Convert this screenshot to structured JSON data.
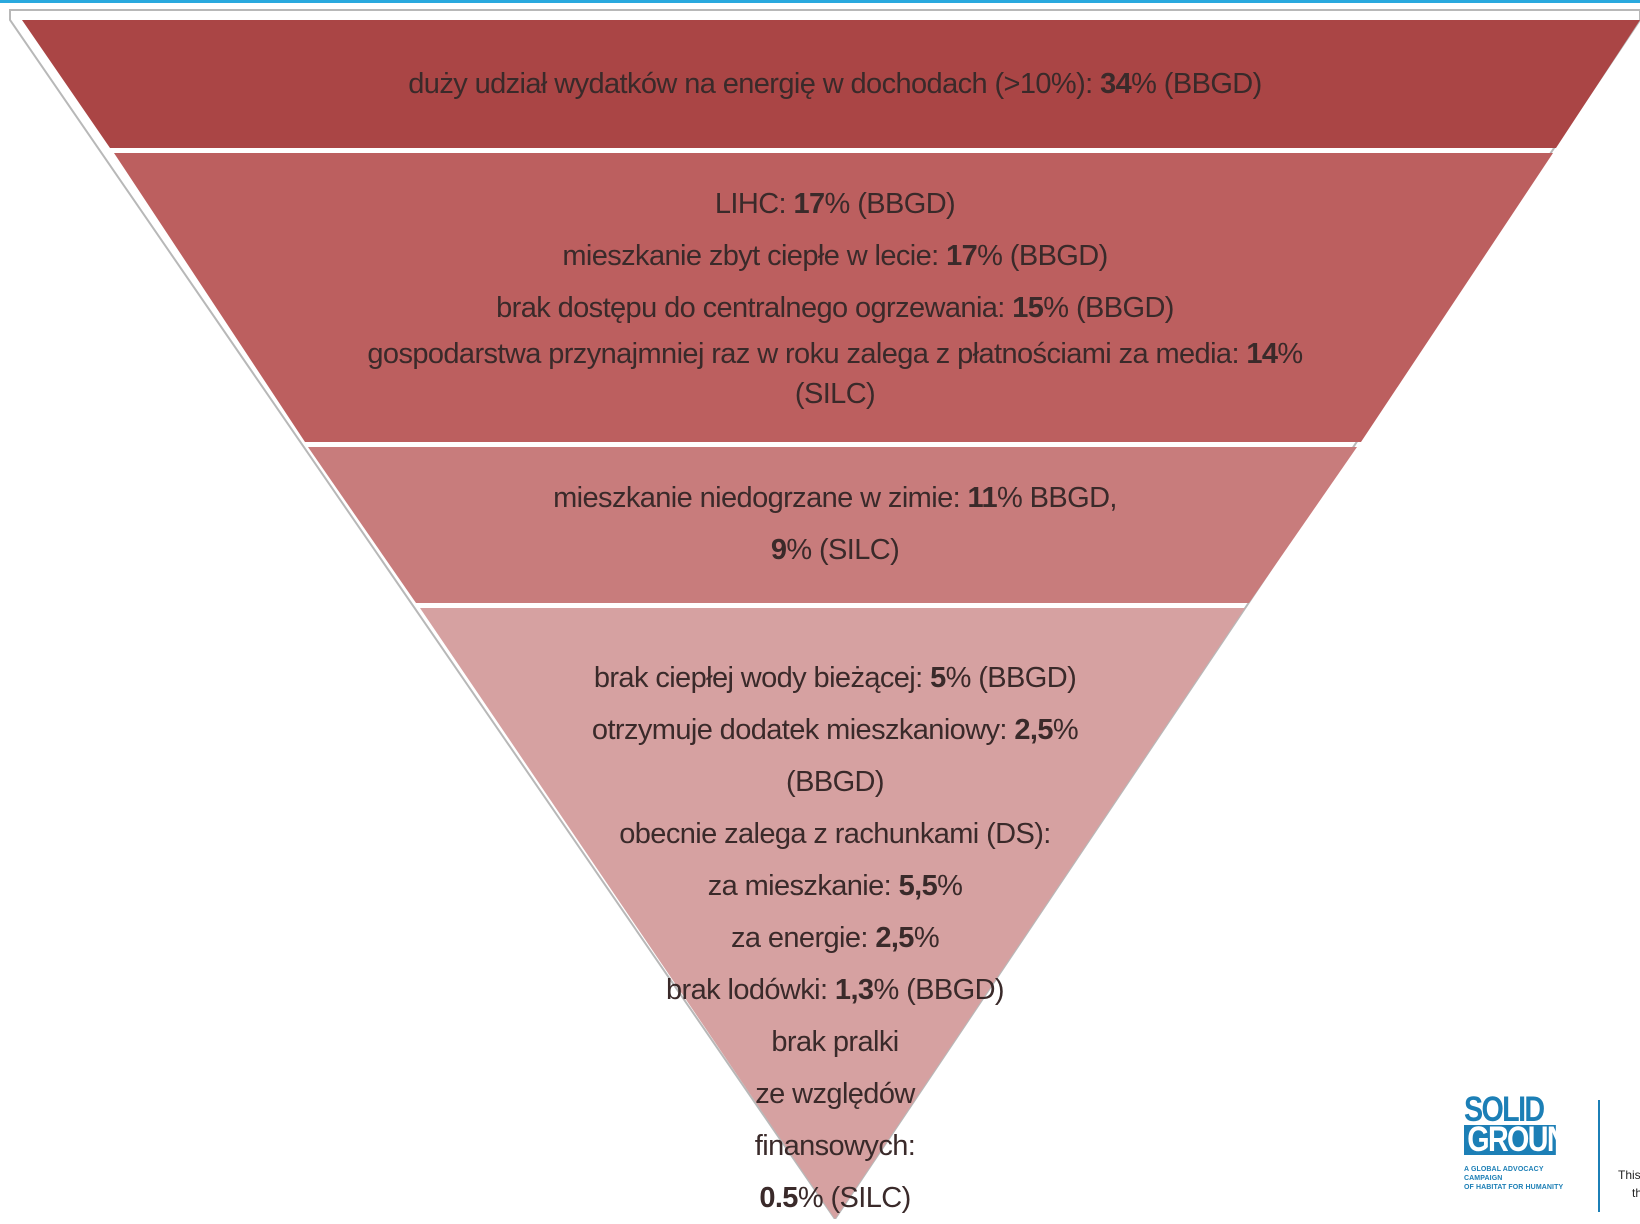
{
  "colors": {
    "top_line": "#2aa9de",
    "tier1": "#aa4545",
    "tier2": "#bc5f5f",
    "tier3": "#c87c7c",
    "tier4": "#d6a1a1",
    "outline": "#b8b8b8",
    "logo_blue": "#1c7fb6"
  },
  "tiers": [
    {
      "lines": [
        {
          "pre": "duży udział wydatków na energię w dochodach (>10%): ",
          "val": "34",
          "post": "% (BBGD)"
        }
      ]
    },
    {
      "lines": [
        {
          "pre": "LIHC: ",
          "val": "17",
          "post": "% (BBGD)"
        },
        {
          "pre": "mieszkanie  zbyt ciepłe w lecie: ",
          "val": "17",
          "post": "% (BBGD)"
        },
        {
          "pre": "brak dostępu do centralnego ogrzewania: ",
          "val": "15",
          "post": "% (BBGD)"
        },
        {
          "pre": "gospodarstwa przynajmniej raz w roku zalega z płatnościami za media: ",
          "val": "14",
          "post": "%"
        },
        {
          "pre": "(SILC)",
          "val": "",
          "post": ""
        }
      ]
    },
    {
      "lines": [
        {
          "pre": "mieszkanie niedogrzane w zimie: ",
          "val": "11",
          "post": "% BBGD,"
        },
        {
          "pre": "",
          "val": "9",
          "post": "% (SILC)"
        }
      ]
    },
    {
      "lines": [
        {
          "pre": "brak ciepłej wody bieżącej: ",
          "val": "5",
          "post": "% (BBGD)"
        },
        {
          "pre": "otrzymuje dodatek mieszkaniowy: ",
          "val": "2,5",
          "post": "% (BBGD)"
        },
        {
          "pre": "obecnie zalega z rachunkami (DS):",
          "val": "",
          "post": ""
        },
        {
          "pre": "za mieszkanie: ",
          "val": "5,5",
          "post": "%"
        },
        {
          "pre": "za energie: ",
          "val": "2,5",
          "post": "%"
        },
        {
          "pre": "brak lodówki: ",
          "val": "1,3",
          "post": "% (BBGD)"
        },
        {
          "pre": "brak pralki",
          "val": "",
          "post": ""
        },
        {
          "pre": "ze względów",
          "val": "",
          "post": ""
        },
        {
          "pre": "finansowych:",
          "val": "",
          "post": ""
        },
        {
          "pre": "",
          "val": "0.5",
          "post": "% (SILC)"
        }
      ]
    }
  ],
  "logo": {
    "word1": "SOLID",
    "word2": "GROUND",
    "tagline1": "A GLOBAL ADVOCACY CAMPAIGN",
    "tagline2": "OF HABITAT FOR HUMANITY"
  },
  "edge_text": [
    "This",
    "th"
  ]
}
